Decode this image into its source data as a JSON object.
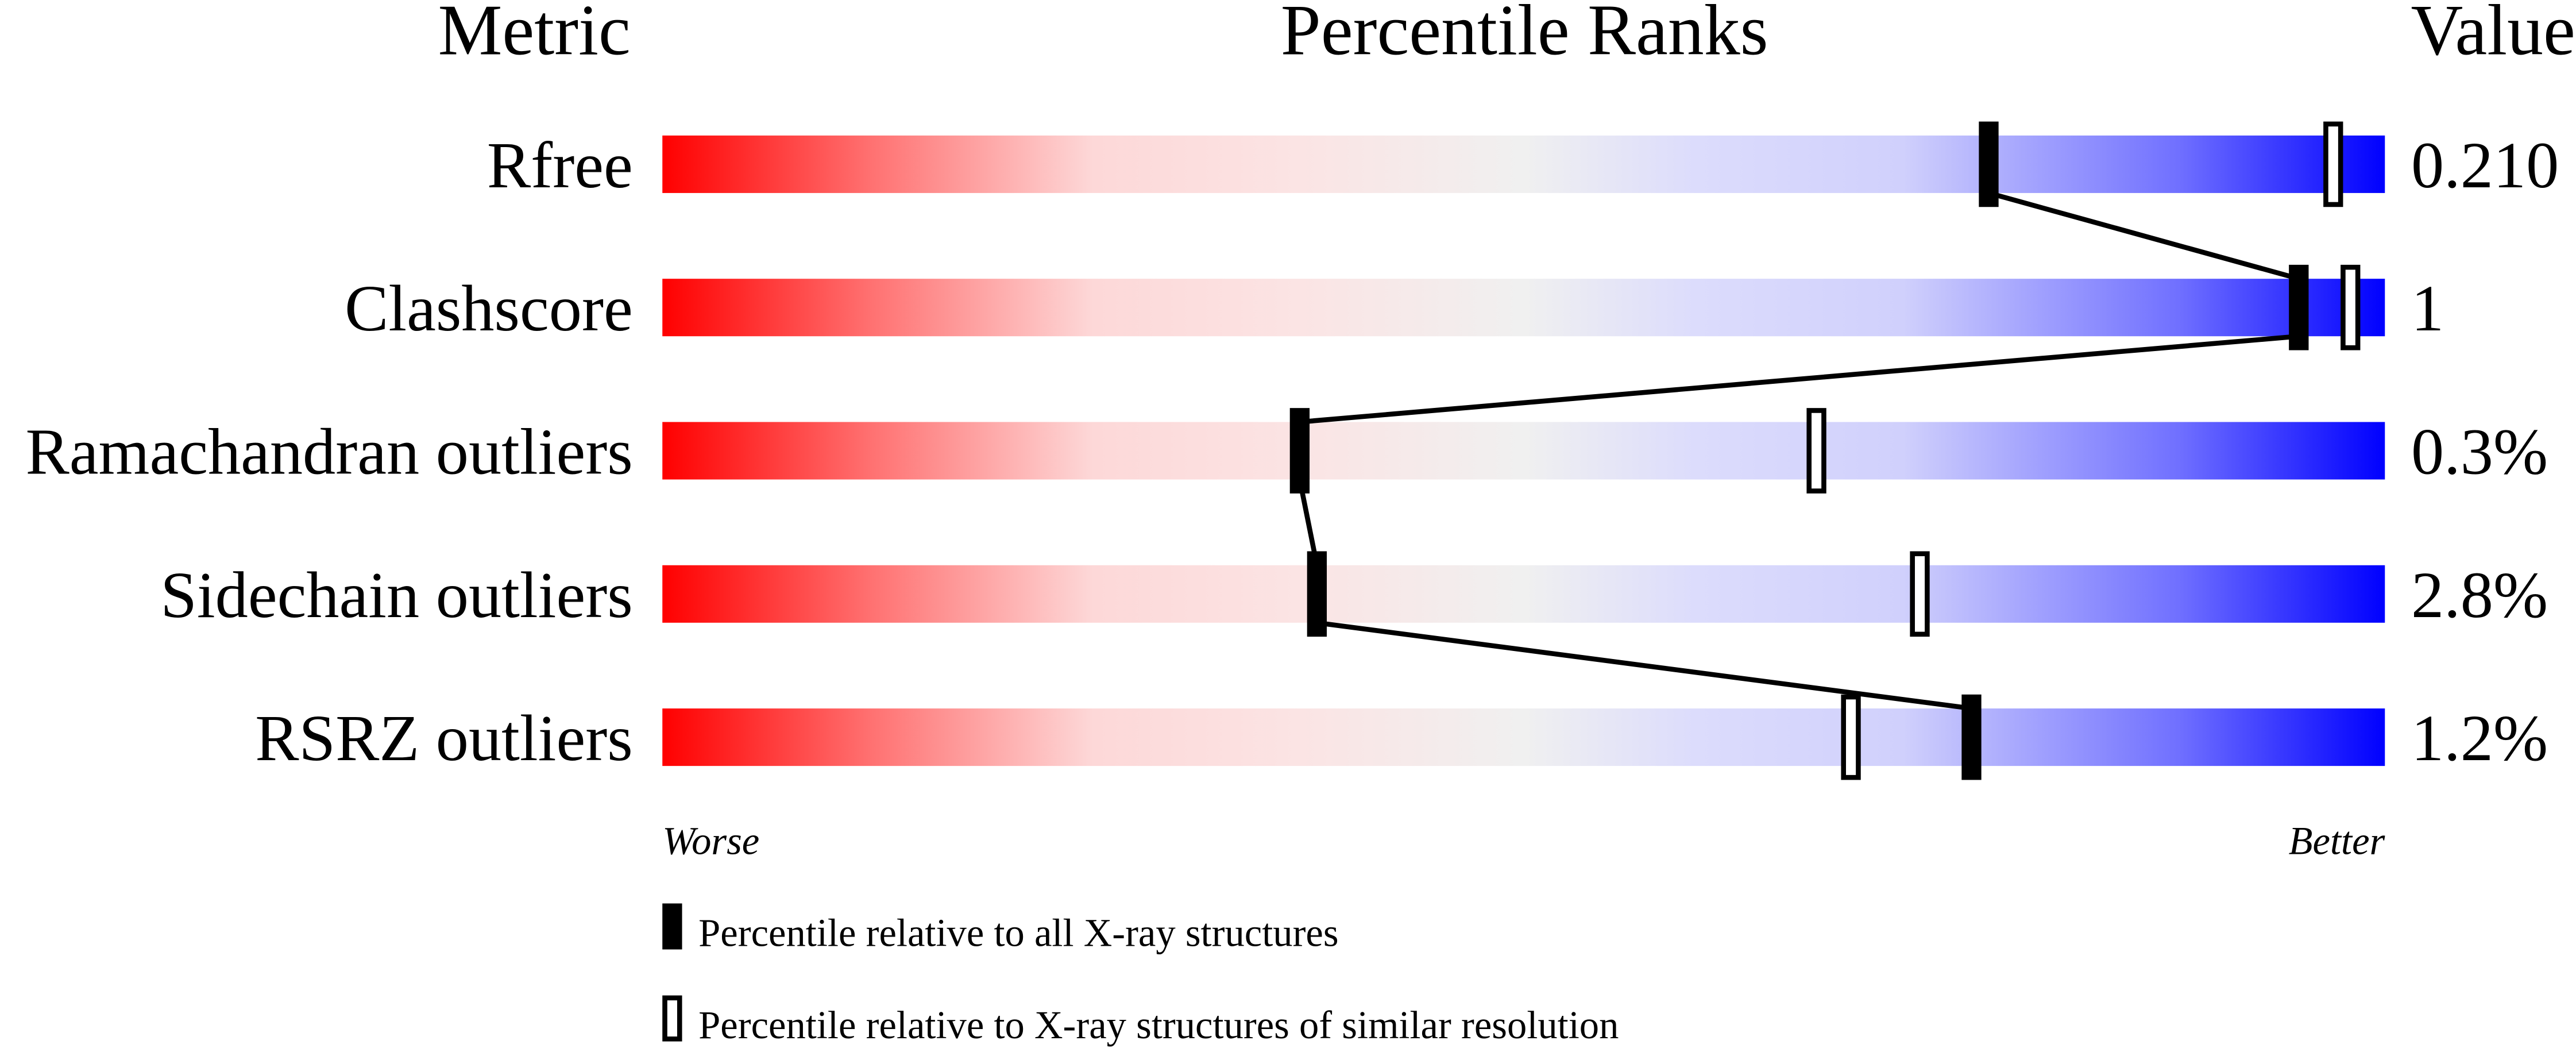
{
  "chart_data": {
    "type": "percentile-rank-bars",
    "headers": {
      "metric": "Metric",
      "ranks": "Percentile Ranks",
      "value": "Value"
    },
    "xlim": [
      0,
      100
    ],
    "axis_ends": {
      "left": "Worse",
      "right": "Better"
    },
    "gradient_colors": [
      "#ff0000",
      "#ff7070",
      "#fdd8d8",
      "#f0f0f0",
      "#dcdcfc",
      "#7070ff",
      "#0000ff"
    ],
    "rows": [
      {
        "metric": "Rfree",
        "value": "0.210",
        "percentile_all": 77,
        "percentile_similar": 97
      },
      {
        "metric": "Clashscore",
        "value": "1",
        "percentile_all": 95,
        "percentile_similar": 98
      },
      {
        "metric": "Ramachandran outliers",
        "value": "0.3%",
        "percentile_all": 37,
        "percentile_similar": 67
      },
      {
        "metric": "Sidechain outliers",
        "value": "2.8%",
        "percentile_all": 38,
        "percentile_similar": 73
      },
      {
        "metric": "RSRZ outliers",
        "value": "1.2%",
        "percentile_all": 76,
        "percentile_similar": 69
      }
    ],
    "legend": [
      {
        "marker": "filled",
        "label": "Percentile relative to all X-ray structures"
      },
      {
        "marker": "open",
        "label": "Percentile relative to X-ray structures of similar resolution"
      }
    ]
  }
}
